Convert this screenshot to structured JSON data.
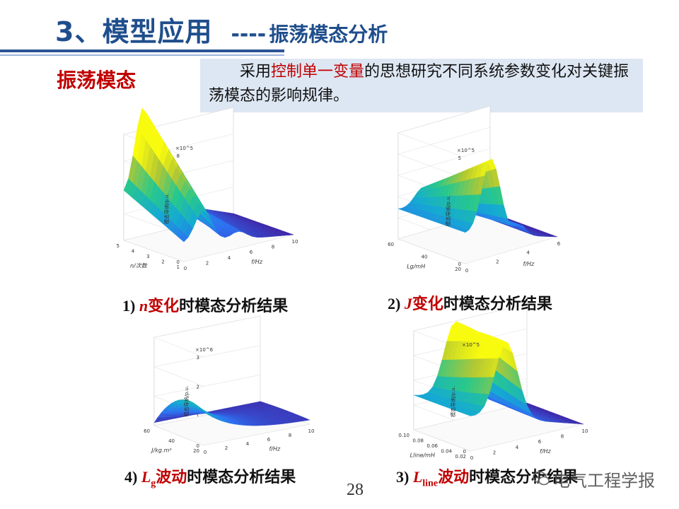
{
  "header": {
    "title": "3、模型应用",
    "dashes": "----",
    "subtitle": "振荡模态分析"
  },
  "section": {
    "label": "振荡模态"
  },
  "intro": {
    "prefix": "采用",
    "highlight": "控制单一变量",
    "suffix": "的思想研究不同系统参数变化对关键振荡模态的影响规律。"
  },
  "plots": [
    {
      "caption_num": "1)",
      "caption_var": "n",
      "caption_red": "变化",
      "caption_rest": "时模态分析结果",
      "exponent": "×10^5",
      "zlabel": "模态导纳/p.u.",
      "zticks": [
        "0",
        "2",
        "4",
        "6",
        "8"
      ],
      "xlabel": "f/Hz",
      "xticks": [
        "0",
        "2",
        "4",
        "6",
        "8",
        "10"
      ],
      "ylabel": "n/次数",
      "yticks": [
        "1",
        "2",
        "3",
        "4",
        "5"
      ]
    },
    {
      "caption_num": "2)",
      "caption_var": "J",
      "caption_red": "变化",
      "caption_rest": "时模态分析结果",
      "exponent": "×10^5",
      "zlabel": "模态导纳/p.u.",
      "zticks": [
        "0",
        "1",
        "2",
        "3",
        "4",
        "5"
      ],
      "xlabel": "f/Hz",
      "xticks": [
        "0",
        "2",
        "4",
        "6"
      ],
      "ylabel": "Lg/mH",
      "yticks": [
        "20",
        "40",
        "60"
      ]
    },
    {
      "caption_num": "4)",
      "caption_var": "L",
      "caption_sub": "g",
      "caption_red": "波动",
      "caption_rest": "时模态分析结果",
      "exponent": "×10^6",
      "zlabel": "模态导纳/p.u.",
      "zticks": [
        "0",
        "1",
        "2",
        "3"
      ],
      "xlabel": "f/Hz",
      "xticks": [
        "0",
        "2",
        "4",
        "6",
        "8",
        "10"
      ],
      "ylabel": "J/kg.m²",
      "yticks": [
        "20",
        "40",
        "60"
      ]
    },
    {
      "caption_num": "3)",
      "caption_var": "L",
      "caption_sub": "line",
      "caption_red": "波动",
      "caption_rest": "时模态分析结果",
      "exponent": "×10^5",
      "zlabel": "模态导纳/p.u.",
      "zticks": [
        "0",
        "1",
        "2",
        "3",
        "4"
      ],
      "xlabel": "f/Hz",
      "xticks": [
        "0",
        "2",
        "4",
        "6",
        "8",
        "10"
      ],
      "ylabel": "Lline/mH",
      "yticks": [
        "0.02",
        "0.04",
        "0.06",
        "0.08",
        "0.10"
      ]
    }
  ],
  "page_number": "28",
  "watermark": "电气工程学报"
}
